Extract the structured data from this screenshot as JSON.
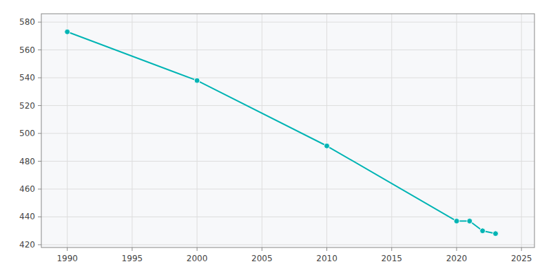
{
  "chart_data": {
    "type": "line",
    "x": [
      1990,
      2000,
      2010,
      2020,
      2021,
      2022,
      2023
    ],
    "values": [
      573,
      538,
      491,
      437,
      437,
      430,
      428
    ],
    "color": "#00b4b4",
    "marker": "circle",
    "xlim": [
      1988,
      2026
    ],
    "ylim": [
      418,
      586
    ],
    "xticks": [
      1990,
      1995,
      2000,
      2005,
      2010,
      2015,
      2020,
      2025
    ],
    "yticks": [
      420,
      440,
      460,
      480,
      500,
      520,
      540,
      560,
      580
    ],
    "grid": true
  }
}
